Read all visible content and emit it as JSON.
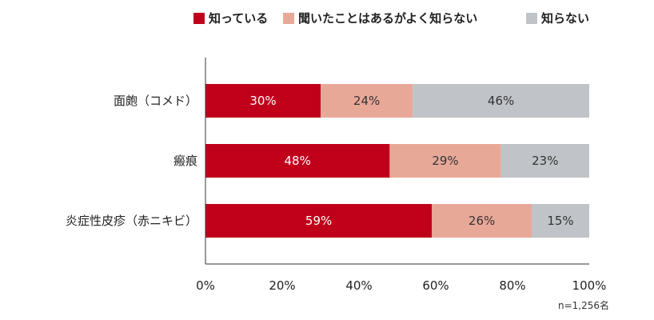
{
  "chart_data": {
    "type": "bar",
    "orientation": "horizontal",
    "stacked": true,
    "categories": [
      "面皰（コメド）",
      "瘢痕",
      "炎症性皮疹（赤ニキビ）"
    ],
    "series": [
      {
        "name": "知っている",
        "values": [
          30,
          48,
          59
        ],
        "color": "#c0001a",
        "label_color": "#ffffff"
      },
      {
        "name": "聞いたことはあるがよく知らない",
        "values": [
          24,
          29,
          26
        ],
        "color": "#e8a898",
        "label_color": "#333333"
      },
      {
        "name": "知らない",
        "values": [
          46,
          23,
          15
        ],
        "color": "#c0c4c8",
        "label_color": "#333333"
      }
    ],
    "value_suffix": "%",
    "xlim": [
      0,
      100
    ],
    "xticks": [
      "0%",
      "20%",
      "40%",
      "60%",
      "80%",
      "100%"
    ],
    "grid": false,
    "legend_position": "top-right",
    "note": "n=1,256名"
  }
}
